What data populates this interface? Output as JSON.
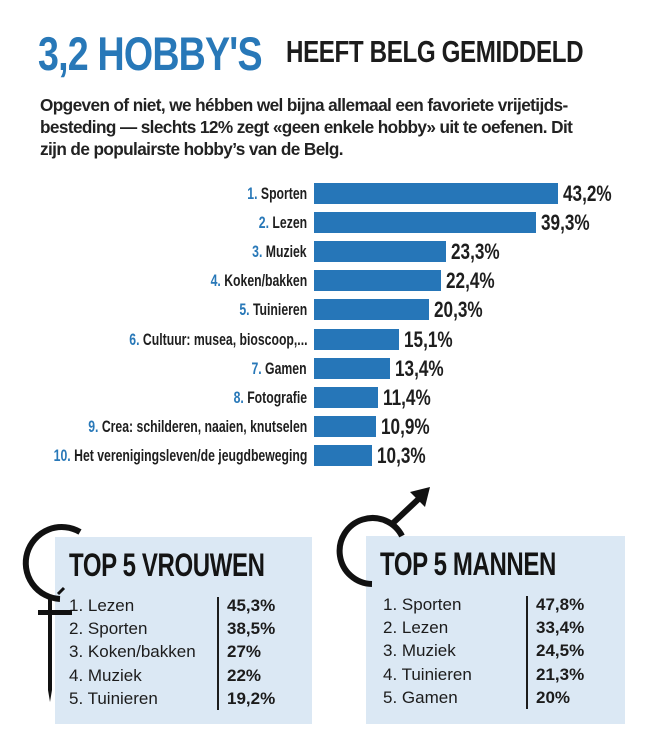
{
  "header": {
    "title_highlight": "3,2 HOBBY'S",
    "title_rest": "HEEFT BELG GEMIDDELD",
    "intro_lines": [
      "Opgeven of niet, we hébben wel bijna allemaal een favoriete vrijetijds-",
      "besteding — slechts 12% zegt «geen enkele hobby» uit te oefenen.  Dit",
      "zijn de populairste hobby’s van de Belg."
    ]
  },
  "colors": {
    "accent_blue": "#2878b8",
    "bar_blue": "#2676b8",
    "panel_bg": "#dbe8f4",
    "text_dark": "#1c1c1c"
  },
  "chart_data": [
    {
      "type": "bar",
      "orientation": "horizontal",
      "title": "3,2 HOBBY'S HEEFT BELG GEMIDDELD",
      "categories": [
        "Sporten",
        "Lezen",
        "Muziek",
        "Koken/bakken",
        "Tuinieren",
        "Cultuur: musea, bioscoop,...",
        "Gamen",
        "Fotografie",
        "Crea: schilderen, naaien, knutselen",
        "Het verenigingsleven/de jeugdbeweging"
      ],
      "ranks": [
        "1.",
        "2.",
        "3.",
        "4.",
        "5.",
        "6.",
        "7.",
        "8.",
        "9.",
        "10."
      ],
      "values": [
        43.2,
        39.3,
        23.3,
        22.4,
        20.3,
        15.1,
        13.4,
        11.4,
        10.9,
        10.3
      ],
      "value_labels": [
        "43,2%",
        "39,3%",
        "23,3%",
        "22,4%",
        "20,3%",
        "15,1%",
        "13,4%",
        "11,4%",
        "10,9%",
        "10,3%"
      ],
      "unit": "%",
      "xlabel": "",
      "ylabel": "",
      "grid": false,
      "legend": null
    },
    {
      "type": "table",
      "title": "TOP 5 VROUWEN",
      "categories": [
        "Lezen",
        "Sporten",
        "Koken/bakken",
        "Muziek",
        "Tuinieren"
      ],
      "values": [
        45.3,
        38.5,
        27,
        22,
        19.2
      ]
    },
    {
      "type": "table",
      "title": "TOP 5 MANNEN",
      "categories": [
        "Sporten",
        "Lezen",
        "Muziek",
        "Tuinieren",
        "Gamen"
      ],
      "values": [
        47.8,
        33.4,
        24.5,
        21.3,
        20
      ]
    }
  ],
  "main_chart": {
    "rows": [
      {
        "rank": "1.",
        "label": "Sporten",
        "value": "43,2%"
      },
      {
        "rank": "2.",
        "label": "Lezen",
        "value": "39,3%"
      },
      {
        "rank": "3.",
        "label": "Muziek",
        "value": "23,3%"
      },
      {
        "rank": "4.",
        "label": "Koken/bakken",
        "value": "22,4%"
      },
      {
        "rank": "5.",
        "label": "Tuinieren",
        "value": "20,3%"
      },
      {
        "rank": "6.",
        "label": "Cultuur: musea, bioscoop,...",
        "value": "15,1%"
      },
      {
        "rank": "7.",
        "label": "Gamen",
        "value": "13,4%"
      },
      {
        "rank": "8.",
        "label": "Fotografie",
        "value": "11,4%"
      },
      {
        "rank": "9.",
        "label": "Crea: schilderen, naaien, knutselen",
        "value": "10,9%"
      },
      {
        "rank": "10.",
        "label": "Het verenigingsleven/de jeugdbeweging",
        "value": "10,3%"
      }
    ]
  },
  "women": {
    "icon": "female-symbol-icon",
    "title": "TOP 5 VROUWEN",
    "items": [
      {
        "label": "1. Lezen",
        "value": "45,3%"
      },
      {
        "label": "2. Sporten",
        "value": "38,5%"
      },
      {
        "label": "3. Koken/bakken",
        "value": "27%"
      },
      {
        "label": "4. Muziek",
        "value": "22%"
      },
      {
        "label": "5. Tuinieren",
        "value": "19,2%"
      }
    ]
  },
  "men": {
    "icon": "male-symbol-icon",
    "title": "TOP 5 MANNEN",
    "items": [
      {
        "label": "1. Sporten",
        "value": "47,8%"
      },
      {
        "label": "2. Lezen",
        "value": "33,4%"
      },
      {
        "label": "3. Muziek",
        "value": "24,5%"
      },
      {
        "label": "4. Tuinieren",
        "value": "21,3%"
      },
      {
        "label": "5. Gamen",
        "value": "20%"
      }
    ]
  }
}
